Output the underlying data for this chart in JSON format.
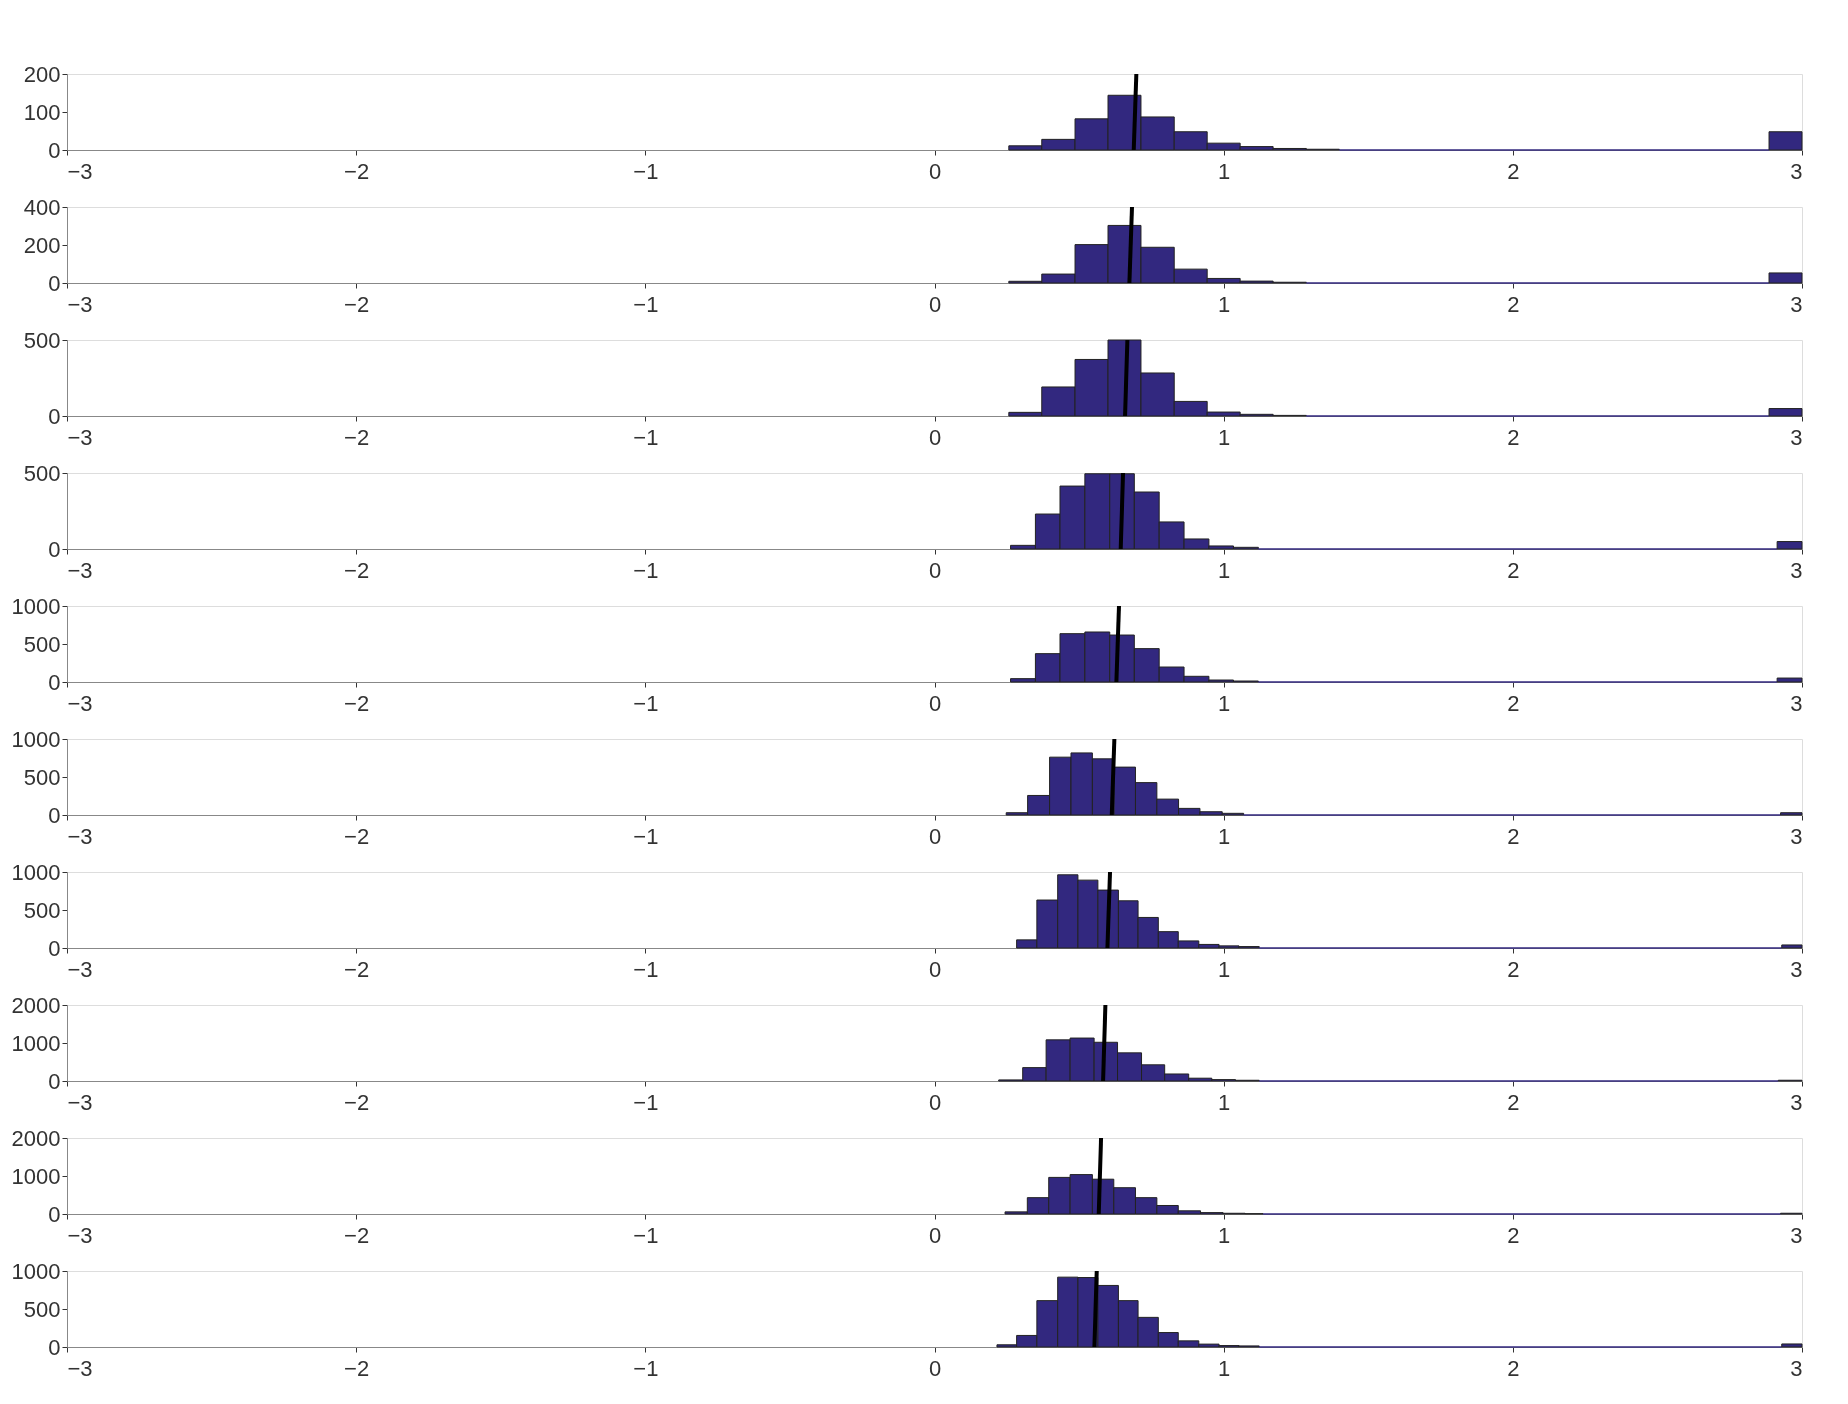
{
  "chart_data": [
    {
      "type": "histogram",
      "color": "#32287f",
      "xlim": [
        -3,
        3
      ],
      "xticks": [
        -3,
        -2,
        -1,
        0,
        1,
        2,
        3
      ],
      "ylim": [
        0,
        200
      ],
      "yticks": [
        0,
        100,
        200
      ],
      "bins": [
        0.257,
        0.371,
        0.486,
        0.6,
        0.714,
        0.829,
        0.943,
        1.057,
        1.171,
        1.286,
        1.4,
        2.886,
        3.0
      ],
      "values": [
        11,
        28,
        82,
        144,
        87,
        48,
        18,
        9,
        4,
        2,
        0,
        48
      ],
      "series": [
        {
          "type": "line",
          "color": "#000000",
          "x": [
            0.698,
            0.689
          ],
          "values": [
            200,
            0
          ]
        }
      ]
    },
    {
      "type": "histogram",
      "color": "#32287f",
      "xlim": [
        -3,
        3
      ],
      "xticks": [
        -3,
        -2,
        -1,
        0,
        1,
        2,
        3
      ],
      "ylim": [
        0,
        400
      ],
      "yticks": [
        0,
        200,
        400
      ],
      "bins": [
        0.257,
        0.371,
        0.486,
        0.6,
        0.714,
        0.829,
        0.943,
        1.057,
        1.171,
        1.286,
        2.886,
        3.0
      ],
      "values": [
        9,
        47,
        202,
        303,
        188,
        73,
        24,
        10,
        4,
        0,
        53
      ],
      "series": [
        {
          "type": "line",
          "color": "#000000",
          "x": [
            0.683,
            0.674
          ],
          "values": [
            400,
            0
          ]
        }
      ]
    },
    {
      "type": "histogram",
      "color": "#32287f",
      "xlim": [
        -3,
        3
      ],
      "xticks": [
        -3,
        -2,
        -1,
        0,
        1,
        2,
        3
      ],
      "ylim": [
        0,
        500
      ],
      "yticks": [
        0,
        500
      ],
      "bins": [
        0.257,
        0.371,
        0.486,
        0.6,
        0.714,
        0.829,
        0.943,
        1.057,
        1.171,
        1.286,
        2.886,
        3.0
      ],
      "values": [
        24,
        191,
        372,
        500,
        283,
        96,
        26,
        11,
        4,
        0,
        49
      ],
      "series": [
        {
          "type": "line",
          "color": "#000000",
          "x": [
            0.667,
            0.659
          ],
          "values": [
            500,
            0
          ]
        }
      ]
    },
    {
      "type": "histogram",
      "color": "#32287f",
      "xlim": [
        -3,
        3
      ],
      "xticks": [
        -3,
        -2,
        -1,
        0,
        1,
        2,
        3
      ],
      "ylim": [
        0,
        500
      ],
      "yticks": [
        0,
        500
      ],
      "bins": [
        0.263,
        0.349,
        0.434,
        0.52,
        0.606,
        0.691,
        0.777,
        0.863,
        0.949,
        1.034,
        1.12,
        2.914,
        3.0
      ],
      "values": [
        24,
        230,
        414,
        495,
        495,
        375,
        178,
        66,
        20,
        11,
        0,
        49
      ],
      "series": [
        {
          "type": "line",
          "color": "#000000",
          "x": [
            0.652,
            0.644
          ],
          "values": [
            500,
            0
          ]
        }
      ]
    },
    {
      "type": "histogram",
      "color": "#32287f",
      "xlim": [
        -3,
        3
      ],
      "xticks": [
        -3,
        -2,
        -1,
        0,
        1,
        2,
        3
      ],
      "ylim": [
        0,
        1000
      ],
      "yticks": [
        0,
        500,
        1000
      ],
      "bins": [
        0.263,
        0.349,
        0.434,
        0.52,
        0.606,
        0.691,
        0.777,
        0.863,
        0.949,
        1.034,
        1.12,
        2.914,
        3.0
      ],
      "values": [
        44,
        373,
        636,
        658,
        618,
        439,
        197,
        75,
        26,
        13,
        0,
        52
      ],
      "series": [
        {
          "type": "line",
          "color": "#000000",
          "x": [
            0.638,
            0.629
          ],
          "values": [
            1000,
            0
          ]
        }
      ]
    },
    {
      "type": "histogram",
      "color": "#32287f",
      "xlim": [
        -3,
        3
      ],
      "xticks": [
        -3,
        -2,
        -1,
        0,
        1,
        2,
        3
      ],
      "ylim": [
        0,
        1000
      ],
      "yticks": [
        0,
        500,
        1000
      ],
      "bins": [
        0.248,
        0.322,
        0.398,
        0.472,
        0.546,
        0.621,
        0.695,
        0.769,
        0.844,
        0.918,
        0.995,
        1.069,
        2.926,
        3.0
      ],
      "values": [
        30,
        257,
        761,
        817,
        739,
        630,
        426,
        209,
        87,
        43,
        22,
        0,
        30
      ],
      "series": [
        {
          "type": "line",
          "color": "#000000",
          "x": [
            0.622,
            0.613
          ],
          "values": [
            1000,
            0
          ]
        }
      ]
    },
    {
      "type": "histogram",
      "color": "#32287f",
      "xlim": [
        -3,
        3
      ],
      "xticks": [
        -3,
        -2,
        -1,
        0,
        1,
        2,
        3
      ],
      "ylim": [
        0,
        1000
      ],
      "yticks": [
        0,
        500,
        1000
      ],
      "bins": [
        0.284,
        0.354,
        0.426,
        0.496,
        0.565,
        0.636,
        0.704,
        0.774,
        0.843,
        0.914,
        0.984,
        1.053,
        1.123,
        2.93,
        3.0
      ],
      "values": [
        107,
        631,
        963,
        893,
        762,
        621,
        402,
        215,
        93,
        47,
        28,
        19,
        0,
        40
      ],
      "series": [
        {
          "type": "line",
          "color": "#000000",
          "x": [
            0.607,
            0.598
          ],
          "values": [
            1000,
            0
          ]
        }
      ]
    },
    {
      "type": "histogram",
      "color": "#32287f",
      "xlim": [
        -3,
        3
      ],
      "xticks": [
        -3,
        -2,
        -1,
        0,
        1,
        2,
        3
      ],
      "ylim": [
        0,
        2000
      ],
      "yticks": [
        0,
        1000,
        2000
      ],
      "bins": [
        0.222,
        0.305,
        0.386,
        0.469,
        0.552,
        0.633,
        0.716,
        0.796,
        0.879,
        0.959,
        1.041,
        1.123,
        2.918,
        3.0
      ],
      "values": [
        28,
        352,
        1083,
        1130,
        1019,
        741,
        426,
        185,
        74,
        37,
        19,
        0,
        20
      ],
      "series": [
        {
          "type": "line",
          "color": "#000000",
          "x": [
            0.591,
            0.583
          ],
          "values": [
            2000,
            0
          ]
        }
      ]
    },
    {
      "type": "histogram",
      "color": "#32287f",
      "xlim": [
        -3,
        3
      ],
      "xticks": [
        -3,
        -2,
        -1,
        0,
        1,
        2,
        3
      ],
      "ylim": [
        0,
        2000
      ],
      "yticks": [
        0,
        1000,
        2000
      ],
      "bins": [
        0.244,
        0.321,
        0.395,
        0.469,
        0.546,
        0.62,
        0.695,
        0.769,
        0.843,
        0.92,
        0.998,
        1.074,
        1.136,
        2.926,
        3.0
      ],
      "values": [
        56,
        430,
        963,
        1037,
        916,
        692,
        430,
        224,
        84,
        37,
        19,
        9,
        0,
        20
      ],
      "series": [
        {
          "type": "line",
          "color": "#000000",
          "x": [
            0.576,
            0.568
          ],
          "values": [
            2000,
            0
          ]
        }
      ]
    },
    {
      "type": "histogram",
      "color": "#32287f",
      "xlim": [
        -3,
        3
      ],
      "xticks": [
        -3,
        -2,
        -1,
        0,
        1,
        2,
        3
      ],
      "ylim": [
        0,
        1000
      ],
      "yticks": [
        0,
        500,
        1000
      ],
      "bins": [
        0.216,
        0.284,
        0.354,
        0.426,
        0.496,
        0.565,
        0.636,
        0.704,
        0.774,
        0.843,
        0.914,
        0.984,
        1.053,
        1.123,
        2.93,
        3.0
      ],
      "values": [
        29,
        152,
        610,
        919,
        914,
        810,
        610,
        390,
        190,
        81,
        38,
        19,
        14,
        0,
        40
      ],
      "series": [
        {
          "type": "line",
          "color": "#000000",
          "x": [
            0.561,
            0.553
          ],
          "values": [
            1000,
            0
          ]
        }
      ]
    }
  ]
}
